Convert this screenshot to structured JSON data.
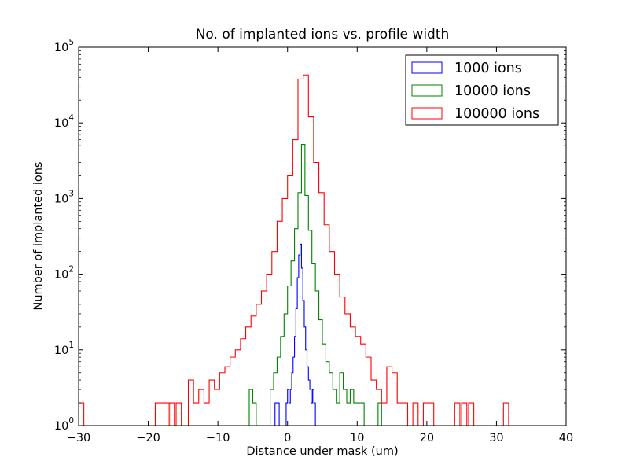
{
  "chart_data": {
    "type": "step-histogram",
    "title": "No. of implanted ions vs. profile width",
    "xlabel": "Distance under mask (um)",
    "ylabel": "Number of implanted ions",
    "xlim": [
      -30,
      40
    ],
    "ylim": [
      1,
      100000
    ],
    "yscale": "log",
    "x_ticks": [
      -30,
      -20,
      -10,
      0,
      10,
      20,
      30,
      40
    ],
    "x_tick_labels": [
      "−30",
      "−20",
      "−10",
      "0",
      "10",
      "20",
      "30",
      "40"
    ],
    "y_ticks": [
      1,
      10,
      100,
      1000,
      10000,
      100000
    ],
    "y_tick_labels": [
      {
        "base": "10",
        "exp": "0"
      },
      {
        "base": "10",
        "exp": "1"
      },
      {
        "base": "10",
        "exp": "2"
      },
      {
        "base": "10",
        "exp": "3"
      },
      {
        "base": "10",
        "exp": "4"
      },
      {
        "base": "10",
        "exp": "5"
      }
    ],
    "grid": false,
    "legend_position": "top-right",
    "series": [
      {
        "name": "1000 ions",
        "color": "#0000ff",
        "bin_width": 0.2,
        "bins": [
          [
            -1.8,
            2
          ],
          [
            -1.6,
            2
          ],
          [
            -1.4,
            2
          ],
          [
            -0.2,
            2
          ],
          [
            0.0,
            3
          ],
          [
            0.2,
            2
          ],
          [
            0.4,
            3
          ],
          [
            0.6,
            5
          ],
          [
            0.8,
            8
          ],
          [
            1.0,
            15
          ],
          [
            1.2,
            35
          ],
          [
            1.4,
            90
          ],
          [
            1.6,
            180
          ],
          [
            1.8,
            250
          ],
          [
            2.0,
            120
          ],
          [
            2.2,
            45
          ],
          [
            2.4,
            20
          ],
          [
            2.6,
            10
          ],
          [
            2.8,
            6
          ],
          [
            3.0,
            4
          ],
          [
            3.2,
            3
          ],
          [
            3.4,
            2
          ],
          [
            3.6,
            3
          ],
          [
            3.8,
            2
          ]
        ]
      },
      {
        "name": "10000 ions",
        "color": "#008000",
        "bin_width": 0.5,
        "bins": [
          [
            -5.5,
            3
          ],
          [
            -5.0,
            2
          ],
          [
            -2.5,
            3
          ],
          [
            -2.0,
            5
          ],
          [
            -1.5,
            8
          ],
          [
            -1.0,
            15
          ],
          [
            -0.5,
            30
          ],
          [
            0.0,
            70
          ],
          [
            0.5,
            150
          ],
          [
            1.0,
            400
          ],
          [
            1.5,
            1200
          ],
          [
            2.0,
            5200
          ],
          [
            2.5,
            1100
          ],
          [
            3.0,
            380
          ],
          [
            3.5,
            140
          ],
          [
            4.0,
            60
          ],
          [
            4.5,
            25
          ],
          [
            5.0,
            12
          ],
          [
            5.5,
            7
          ],
          [
            6.0,
            5
          ],
          [
            6.5,
            3
          ],
          [
            7.0,
            2
          ],
          [
            7.5,
            5
          ],
          [
            8.0,
            3
          ],
          [
            8.5,
            2
          ],
          [
            9.0,
            3
          ],
          [
            9.5,
            2
          ],
          [
            10.0,
            2
          ],
          [
            10.5,
            2
          ],
          [
            13.0,
            2
          ]
        ]
      },
      {
        "name": "100000 ions",
        "color": "#ff0000",
        "bin_width": 0.75,
        "bins": [
          [
            -30.0,
            2
          ],
          [
            -19.0,
            2
          ],
          [
            -18.25,
            2
          ],
          [
            -17.5,
            2
          ],
          [
            -17.0,
            2
          ],
          [
            -16.0,
            2
          ],
          [
            -14.25,
            4
          ],
          [
            -13.5,
            2
          ],
          [
            -12.75,
            3
          ],
          [
            -12.0,
            2
          ],
          [
            -11.25,
            4
          ],
          [
            -10.5,
            3
          ],
          [
            -9.75,
            5
          ],
          [
            -9.0,
            6
          ],
          [
            -8.25,
            8
          ],
          [
            -7.5,
            10
          ],
          [
            -6.75,
            14
          ],
          [
            -6.0,
            20
          ],
          [
            -5.25,
            28
          ],
          [
            -4.5,
            40
          ],
          [
            -3.75,
            60
          ],
          [
            -3.0,
            100
          ],
          [
            -2.25,
            200
          ],
          [
            -1.5,
            500
          ],
          [
            -0.75,
            1000
          ],
          [
            0.0,
            2000
          ],
          [
            0.75,
            6000
          ],
          [
            1.5,
            38000
          ],
          [
            2.25,
            43000
          ],
          [
            3.0,
            12000
          ],
          [
            3.75,
            3000
          ],
          [
            4.5,
            1200
          ],
          [
            5.25,
            450
          ],
          [
            6.0,
            200
          ],
          [
            6.75,
            100
          ],
          [
            7.5,
            50
          ],
          [
            8.25,
            30
          ],
          [
            9.0,
            20
          ],
          [
            9.75,
            15
          ],
          [
            10.5,
            12
          ],
          [
            11.25,
            8
          ],
          [
            12.0,
            4
          ],
          [
            12.75,
            3
          ],
          [
            13.5,
            2
          ],
          [
            14.25,
            6
          ],
          [
            15.0,
            5
          ],
          [
            15.75,
            2
          ],
          [
            16.5,
            2
          ],
          [
            18.0,
            2
          ],
          [
            19.5,
            2
          ],
          [
            20.25,
            2
          ],
          [
            24.0,
            2
          ],
          [
            25.0,
            2
          ],
          [
            26.0,
            2
          ],
          [
            31.0,
            2
          ]
        ]
      }
    ]
  }
}
